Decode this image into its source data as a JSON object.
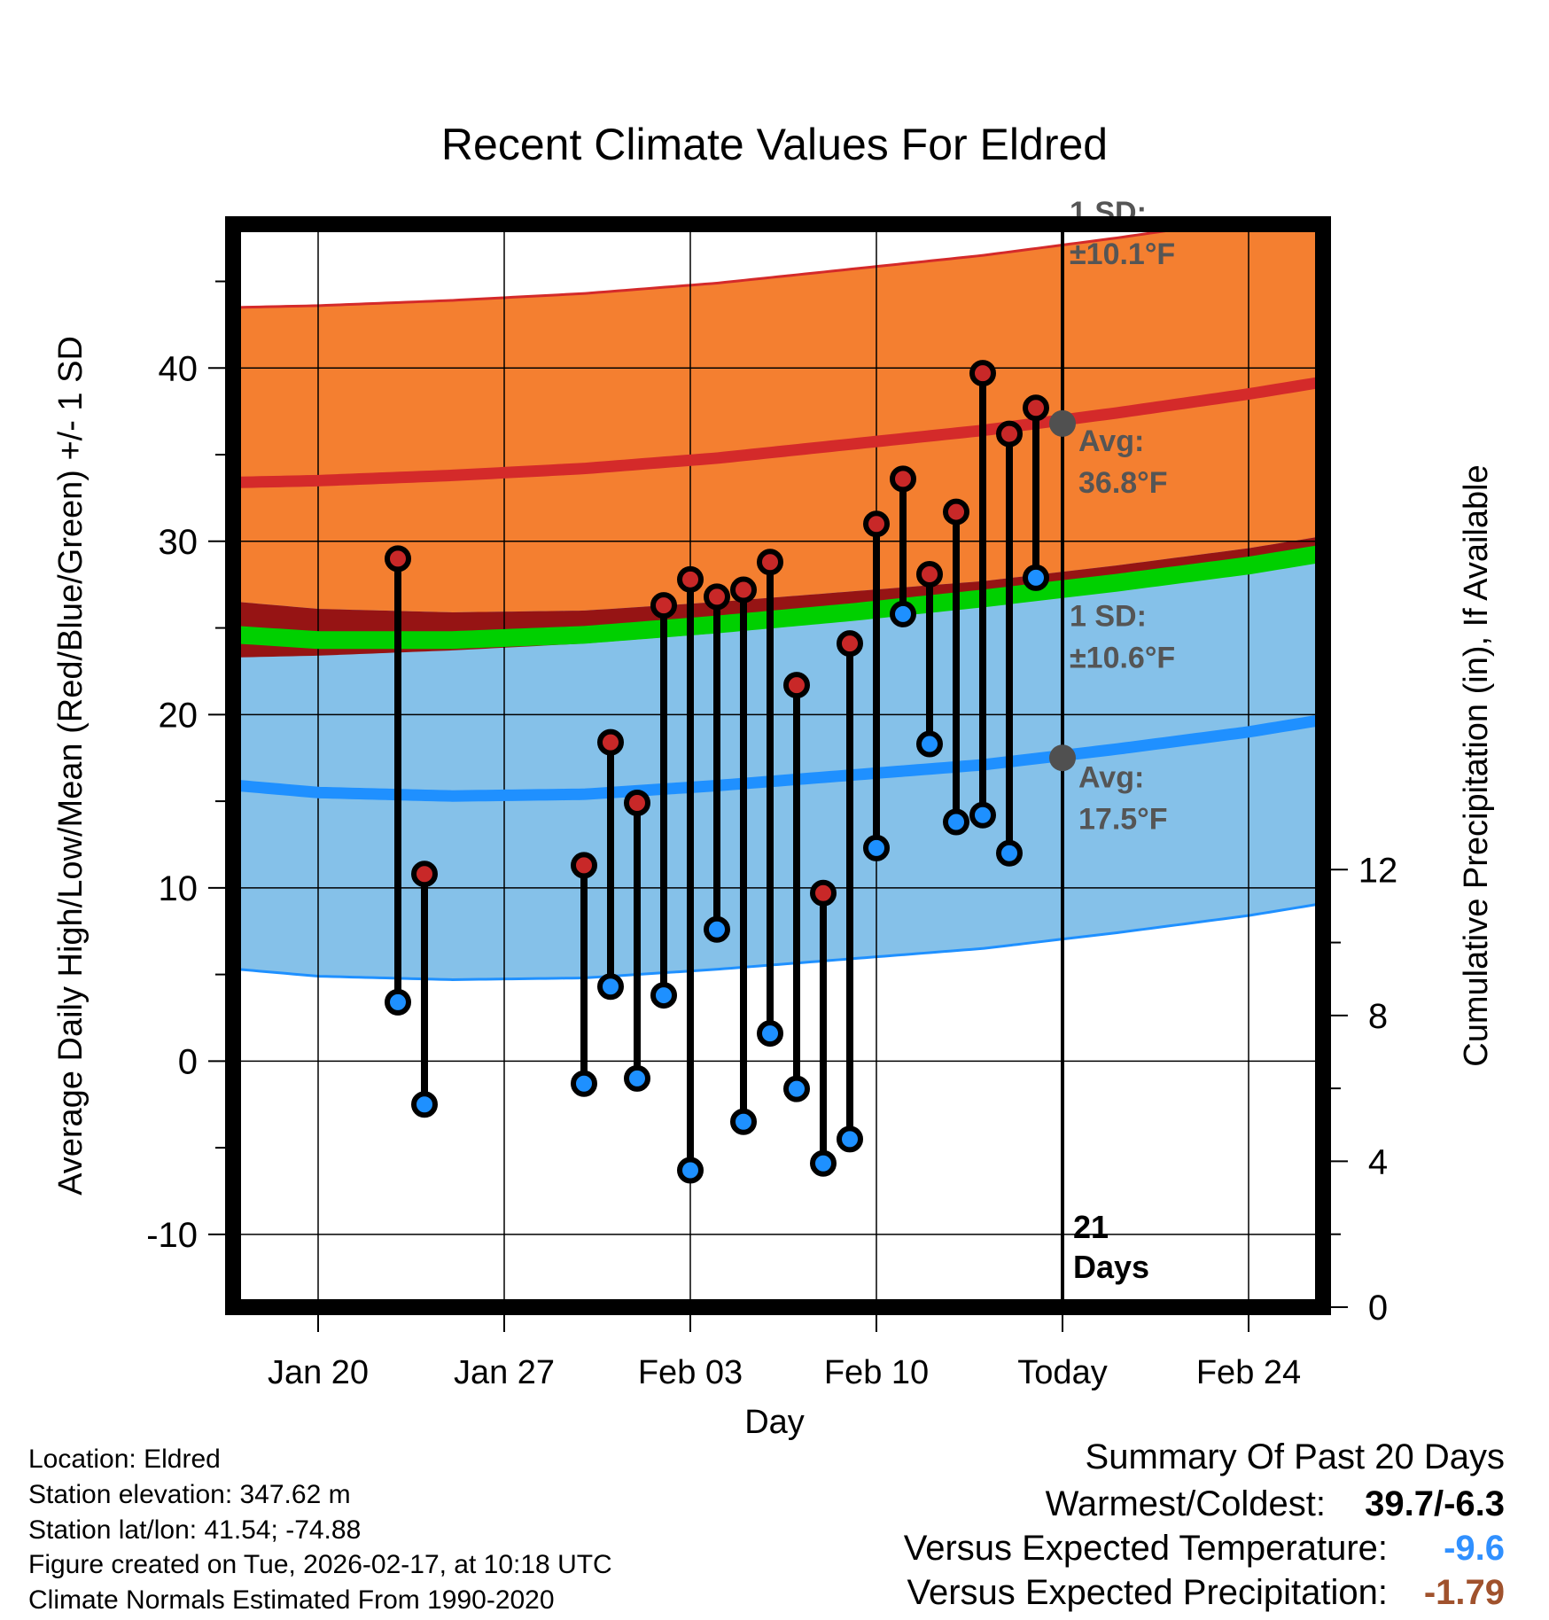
{
  "chart_data": {
    "type": "line",
    "title": "Recent Climate Values For Eldred",
    "xlabel": "Day",
    "ylabel": "Average Daily High/Low/Mean (Red/Blue/Green) +/- 1 SD",
    "y2label": "Cumulative Precipitation (in), If Available",
    "x_ticks": [
      {
        "day": 0,
        "label": "Jan 20"
      },
      {
        "day": 7,
        "label": "Jan 27"
      },
      {
        "day": 14,
        "label": "Feb 03"
      },
      {
        "day": 21,
        "label": "Feb 10"
      },
      {
        "day": 28,
        "label": "Today"
      },
      {
        "day": 35,
        "label": "Feb 24"
      }
    ],
    "xlim": [
      -3.2,
      37.8
    ],
    "ylim": [
      -14.2,
      48.3
    ],
    "y_ticks": [
      -10,
      0,
      10,
      20,
      30,
      40
    ],
    "y2_ticks": [
      0,
      4,
      8,
      12
    ],
    "y2lim": [
      0,
      29.7
    ],
    "today_day": 28,
    "today_label_line1": "21",
    "today_label_line2": "Days",
    "normals": {
      "days": [
        -3,
        0,
        5,
        10,
        15,
        20,
        25,
        30,
        35,
        37.8
      ],
      "high_avg": [
        33.4,
        33.5,
        33.8,
        34.2,
        34.8,
        35.6,
        36.4,
        37.4,
        38.5,
        39.2
      ],
      "high_sd": 10.1,
      "low_avg": [
        15.9,
        15.5,
        15.3,
        15.4,
        15.9,
        16.5,
        17.1,
        18.0,
        19.0,
        19.7
      ],
      "low_sd": 10.6,
      "mean_avg": [
        24.6,
        24.3,
        24.3,
        24.6,
        25.2,
        25.9,
        26.7,
        27.6,
        28.6,
        29.3
      ]
    },
    "series": [
      {
        "name": "Daily High",
        "color": "#c82828",
        "points": [
          [
            3,
            29.0
          ],
          [
            4,
            10.8
          ],
          [
            10,
            11.3
          ],
          [
            11,
            18.4
          ],
          [
            12,
            14.9
          ],
          [
            13,
            26.3
          ],
          [
            14,
            27.8
          ],
          [
            15,
            26.8
          ],
          [
            16,
            27.2
          ],
          [
            17,
            28.8
          ],
          [
            18,
            21.7
          ],
          [
            19,
            9.7
          ],
          [
            20,
            24.1
          ],
          [
            21,
            31.0
          ],
          [
            22,
            33.6
          ],
          [
            23,
            28.1
          ],
          [
            24,
            31.7
          ],
          [
            25,
            39.7
          ],
          [
            26,
            36.2
          ],
          [
            27,
            37.7
          ]
        ]
      },
      {
        "name": "Daily Low",
        "color": "#1e90ff",
        "points": [
          [
            3,
            3.4
          ],
          [
            4,
            -2.5
          ],
          [
            10,
            -1.3
          ],
          [
            11,
            4.3
          ],
          [
            12,
            -1.0
          ],
          [
            13,
            3.8
          ],
          [
            14,
            -6.3
          ],
          [
            15,
            7.6
          ],
          [
            16,
            -3.5
          ],
          [
            17,
            1.6
          ],
          [
            18,
            -1.6
          ],
          [
            19,
            -5.9
          ],
          [
            20,
            -4.5
          ],
          [
            21,
            12.3
          ],
          [
            22,
            25.8
          ],
          [
            23,
            18.3
          ],
          [
            24,
            13.8
          ],
          [
            25,
            14.2
          ],
          [
            26,
            12.0
          ],
          [
            27,
            27.9
          ]
        ]
      }
    ],
    "annotations": {
      "high_sd_line1": "1 SD:",
      "high_sd_line2": "±10.1°F",
      "high_avg_line1": "Avg:",
      "high_avg_line2": "36.8°F",
      "low_sd_line1": "1 SD:",
      "low_sd_line2": "±10.6°F",
      "low_avg_line1": "Avg:",
      "low_avg_line2": "17.5°F",
      "high_avg_value": 36.8,
      "low_avg_value": 17.5
    },
    "colors": {
      "high_band": "#f47f30",
      "low_band": "#85c1e9",
      "overlap_band": "#961414",
      "high_line": "#d42a2a",
      "low_line": "#1f90ff",
      "mean_line": "#00d000",
      "annotation_text": "#555555",
      "marker_dot": "#505050"
    }
  },
  "info": {
    "location": "Location: Eldred",
    "elevation": "Station elevation: 347.62 m",
    "latlon": "Station lat/lon: 41.54; -74.88",
    "created": "Figure created on Tue, 2026-02-17, at 10:18 UTC",
    "normals": "Climate Normals Estimated From 1990-2020"
  },
  "summary": {
    "title": "Summary Of Past 20 Days",
    "warm_cold_label": "Warmest/Coldest:",
    "warm_cold_value": "39.7/-6.3",
    "temp_label": "Versus Expected Temperature:",
    "temp_value": "-9.6",
    "temp_color": "#3090ff",
    "precip_label": "Versus Expected Precipitation:",
    "precip_value": "-1.79",
    "precip_color": "#a0522d"
  }
}
